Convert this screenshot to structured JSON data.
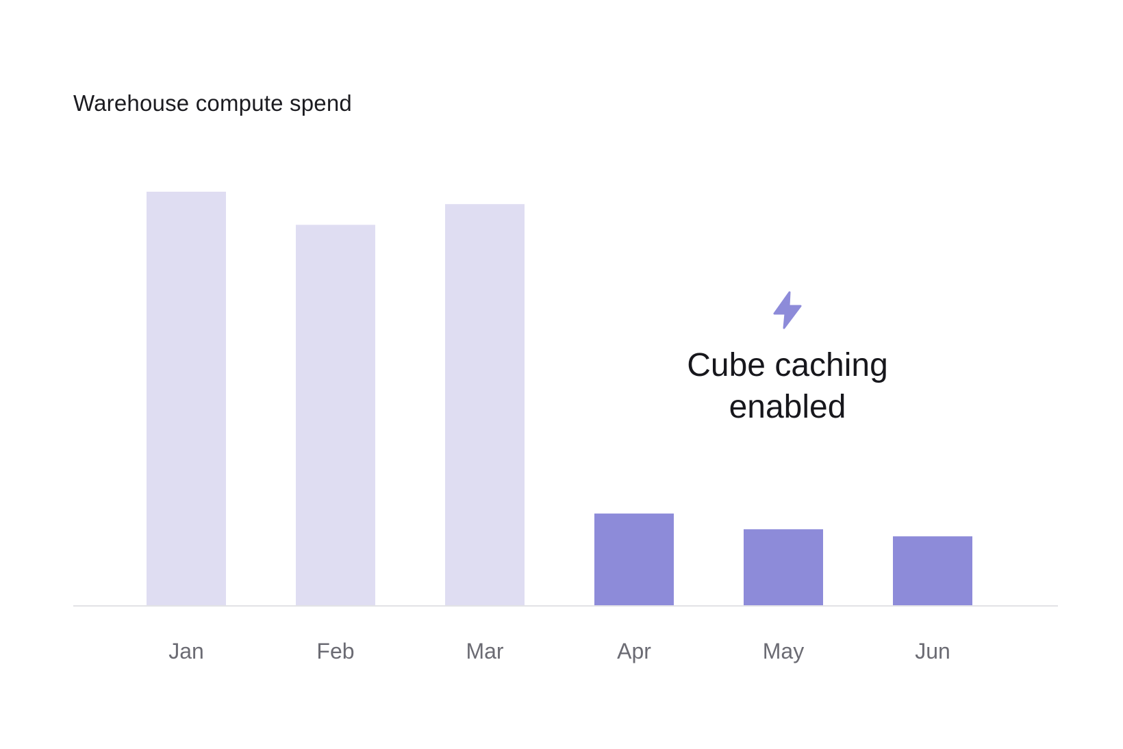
{
  "chart_data": {
    "type": "bar",
    "title": "Warehouse compute spend",
    "categories": [
      "Jan",
      "Feb",
      "Mar",
      "Apr",
      "May",
      "Jun"
    ],
    "values": [
      100,
      92,
      97,
      22.3,
      18.5,
      16.8
    ],
    "bar_colors": [
      "#dfddf2",
      "#dfddf2",
      "#dfddf2",
      "#8d8bd9",
      "#8d8bd9",
      "#8d8bd9"
    ],
    "ylim": [
      0,
      100
    ],
    "grid": false,
    "annotation": {
      "text": "Cube caching enabled",
      "icon": "lightning-bolt-icon",
      "color": "#8d8bd9"
    }
  }
}
